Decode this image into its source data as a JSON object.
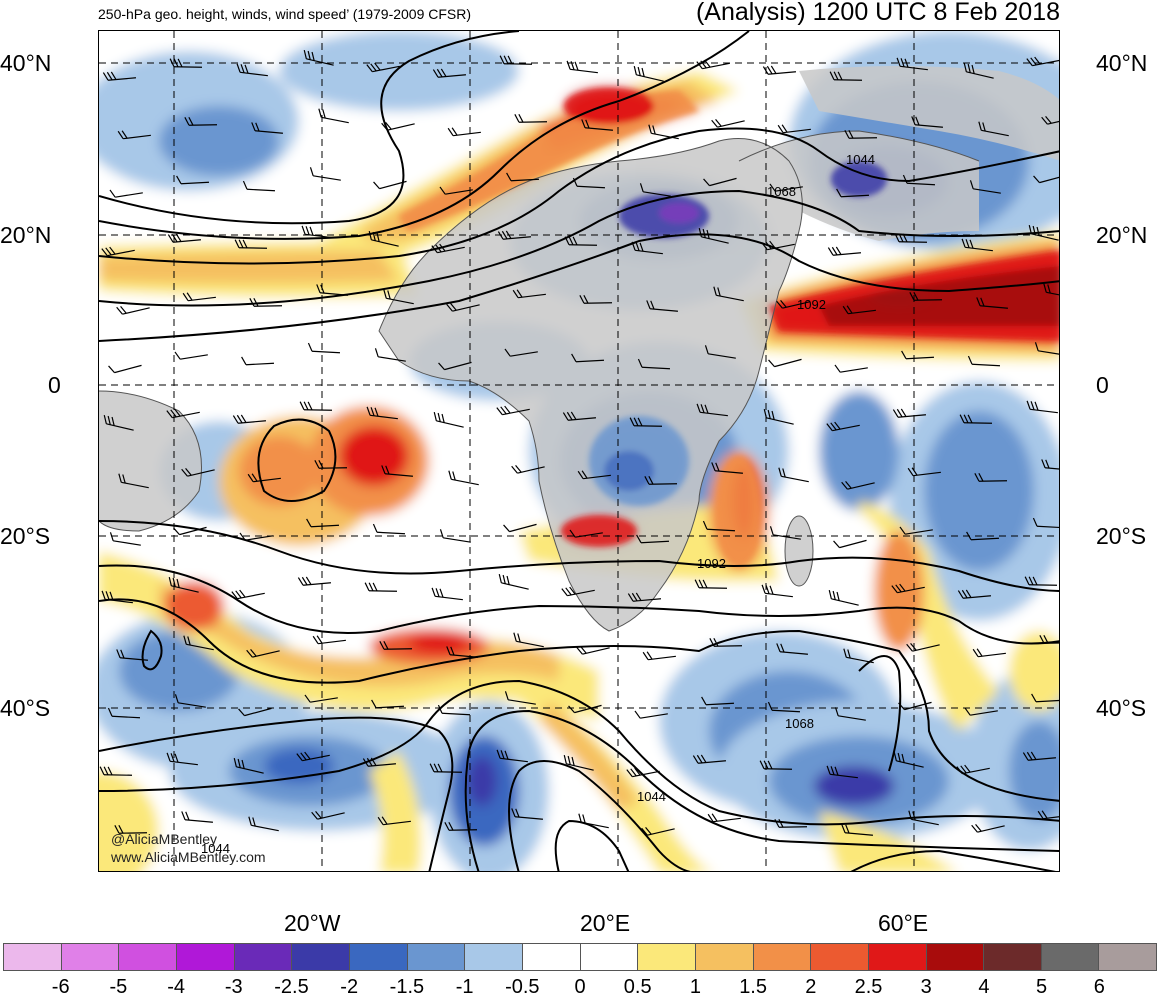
{
  "header": {
    "title_left": "250-hPa geo. height, winds, wind speed’ (1979-2009 CFSR)",
    "title_right": "(Analysis) 1200 UTC 8 Feb 2018"
  },
  "axes": {
    "lat_left": [
      "40°N",
      "20°N",
      "0",
      "20°S",
      "40°S"
    ],
    "lat_right": [
      "40°N",
      "20°N",
      "0",
      "20°S",
      "40°S"
    ],
    "lon_bottom": [
      "20°W",
      "20°E",
      "60°E"
    ]
  },
  "contour_labels": [
    "1044",
    "1068",
    "1092",
    "1092",
    "1068",
    "1044",
    "1044"
  ],
  "credits": {
    "handle": "@AliciaMBentley",
    "website": "www.AliciaMBentley.com"
  },
  "colorbar": {
    "labels": [
      "-6",
      "-5",
      "-4",
      "-3",
      "-2.5",
      "-2",
      "-1.5",
      "-1",
      "-0.5",
      "0",
      "0.5",
      "1",
      "1.5",
      "2",
      "2.5",
      "3",
      "4",
      "5",
      "6"
    ],
    "colors": [
      "#ecb8ec",
      "#e080e8",
      "#d050e0",
      "#b018d8",
      "#6a2ab8",
      "#3b3aa8",
      "#3a68c0",
      "#6a96d0",
      "#a8c8e8",
      "#ffffff",
      "#ffffff",
      "#fbe87a",
      "#f5c060",
      "#f29048",
      "#ec5a30",
      "#e01818",
      "#a80c0c",
      "#6c2a2a",
      "#6a6a6a",
      "#a89c9c"
    ]
  }
}
